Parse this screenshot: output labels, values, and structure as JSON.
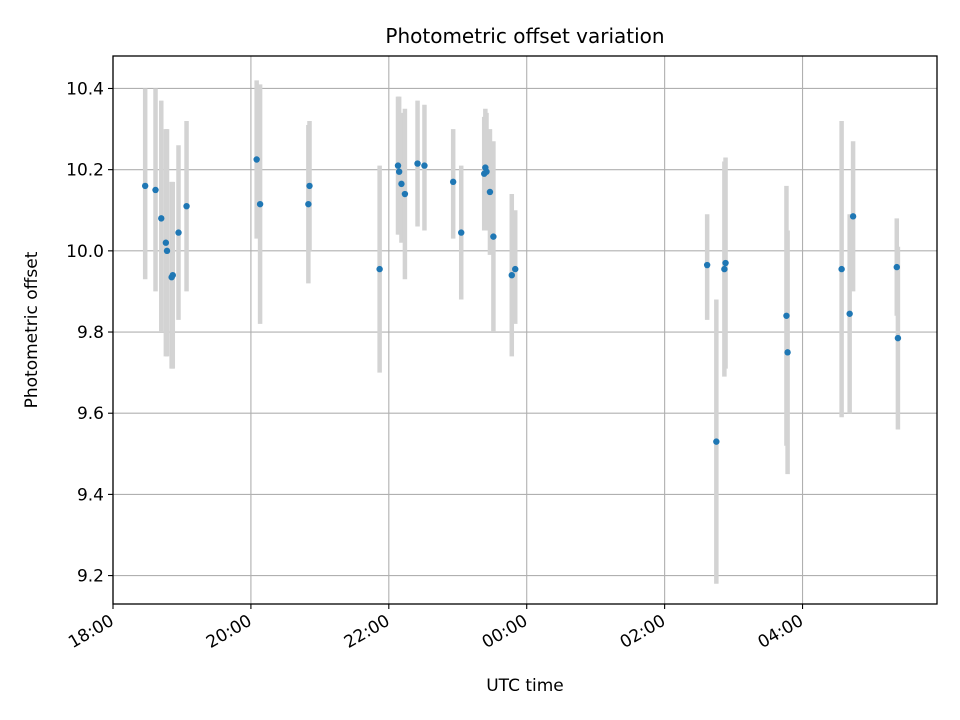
{
  "chart_data": {
    "type": "scatter",
    "title": "Photometric offset variation",
    "xlabel": "UTC time",
    "ylabel": "Photometric offset",
    "x_unit": "UTC time (hours from 18:00, values past 24:00 wrap to next day)",
    "xlim_labels": [
      "18:00",
      "06:00"
    ],
    "ylim": [
      9.13,
      10.48
    ],
    "grid": true,
    "x_ticks": [
      {
        "label": "18:00",
        "t": "18:00"
      },
      {
        "label": "20:00",
        "t": "20:00"
      },
      {
        "label": "22:00",
        "t": "22:00"
      },
      {
        "label": "00:00",
        "t": "00:00"
      },
      {
        "label": "02:00",
        "t": "02:00"
      },
      {
        "label": "04:00",
        "t": "04:00"
      }
    ],
    "y_ticks": [
      "9.2",
      "9.4",
      "9.6",
      "9.8",
      "10.0",
      "10.2",
      "10.4"
    ],
    "series": [
      {
        "color": "#1f77b4",
        "errorbar_color": "#d3d3d3",
        "points": [
          {
            "t": "18:28",
            "y": 10.16,
            "lo": 9.93,
            "hi": 10.4
          },
          {
            "t": "18:37",
            "y": 10.15,
            "lo": 9.9,
            "hi": 10.4
          },
          {
            "t": "18:42",
            "y": 10.08,
            "lo": 9.8,
            "hi": 10.37
          },
          {
            "t": "18:46",
            "y": 10.02,
            "lo": 9.74,
            "hi": 10.3
          },
          {
            "t": "18:47",
            "y": 10.0,
            "lo": 9.74,
            "hi": 10.3
          },
          {
            "t": "18:51",
            "y": 9.935,
            "lo": 9.71,
            "hi": 10.17
          },
          {
            "t": "18:52",
            "y": 9.94,
            "lo": 9.71,
            "hi": 10.17
          },
          {
            "t": "18:57",
            "y": 10.045,
            "lo": 9.83,
            "hi": 10.26
          },
          {
            "t": "19:04",
            "y": 10.11,
            "lo": 9.9,
            "hi": 10.32
          },
          {
            "t": "20:05",
            "y": 10.225,
            "lo": 10.03,
            "hi": 10.42
          },
          {
            "t": "20:08",
            "y": 10.115,
            "lo": 9.82,
            "hi": 10.41
          },
          {
            "t": "20:50",
            "y": 10.115,
            "lo": 9.92,
            "hi": 10.31
          },
          {
            "t": "20:51",
            "y": 10.16,
            "lo": 10.0,
            "hi": 10.32
          },
          {
            "t": "21:52",
            "y": 9.955,
            "lo": 9.7,
            "hi": 10.21
          },
          {
            "t": "22:08",
            "y": 10.21,
            "lo": 10.04,
            "hi": 10.38
          },
          {
            "t": "22:09",
            "y": 10.195,
            "lo": 10.04,
            "hi": 10.38
          },
          {
            "t": "22:11",
            "y": 10.165,
            "lo": 10.02,
            "hi": 10.34
          },
          {
            "t": "22:14",
            "y": 10.14,
            "lo": 9.93,
            "hi": 10.35
          },
          {
            "t": "22:25",
            "y": 10.215,
            "lo": 10.06,
            "hi": 10.37
          },
          {
            "t": "22:31",
            "y": 10.21,
            "lo": 10.05,
            "hi": 10.36
          },
          {
            "t": "22:56",
            "y": 10.17,
            "lo": 10.03,
            "hi": 10.3
          },
          {
            "t": "23:03",
            "y": 10.045,
            "lo": 9.88,
            "hi": 10.21
          },
          {
            "t": "23:23",
            "y": 10.19,
            "lo": 10.05,
            "hi": 10.33
          },
          {
            "t": "23:24",
            "y": 10.205,
            "lo": 10.06,
            "hi": 10.35
          },
          {
            "t": "23:25",
            "y": 10.195,
            "lo": 10.05,
            "hi": 10.34
          },
          {
            "t": "23:28",
            "y": 10.145,
            "lo": 9.99,
            "hi": 10.3
          },
          {
            "t": "23:31",
            "y": 10.035,
            "lo": 9.8,
            "hi": 10.27
          },
          {
            "t": "23:47",
            "y": 9.94,
            "lo": 9.74,
            "hi": 10.14
          },
          {
            "t": "23:50",
            "y": 9.955,
            "lo": 9.82,
            "hi": 10.1
          },
          {
            "t": "02:37",
            "y": 9.965,
            "lo": 9.83,
            "hi": 10.09
          },
          {
            "t": "02:45",
            "y": 9.53,
            "lo": 9.18,
            "hi": 9.88
          },
          {
            "t": "02:52",
            "y": 9.955,
            "lo": 9.69,
            "hi": 10.22
          },
          {
            "t": "02:53",
            "y": 9.97,
            "lo": 9.71,
            "hi": 10.23
          },
          {
            "t": "03:46",
            "y": 9.84,
            "lo": 9.52,
            "hi": 10.16
          },
          {
            "t": "03:47",
            "y": 9.75,
            "lo": 9.45,
            "hi": 10.05
          },
          {
            "t": "04:34",
            "y": 9.955,
            "lo": 9.59,
            "hi": 10.32
          },
          {
            "t": "04:41",
            "y": 9.845,
            "lo": 9.6,
            "hi": 10.09
          },
          {
            "t": "04:44",
            "y": 10.085,
            "lo": 9.9,
            "hi": 10.27
          },
          {
            "t": "05:22",
            "y": 9.96,
            "lo": 9.84,
            "hi": 10.08
          },
          {
            "t": "05:23",
            "y": 9.785,
            "lo": 9.56,
            "hi": 10.01
          }
        ]
      }
    ]
  }
}
